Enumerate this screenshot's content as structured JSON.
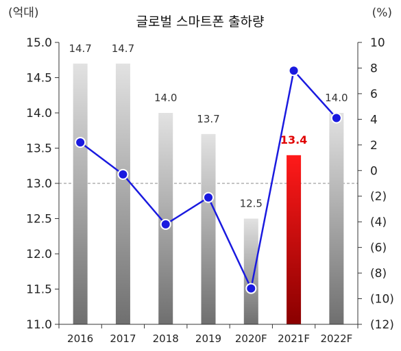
{
  "chart_data": {
    "type": "bar+line",
    "title": "글로벌 스마트폰 출하량",
    "left_unit": "(억대)",
    "right_unit": "(%)",
    "categories": [
      "2016",
      "2017",
      "2018",
      "2019",
      "2020F",
      "2021F",
      "2022F"
    ],
    "bar_series": {
      "values": [
        14.7,
        14.7,
        14.0,
        13.7,
        12.5,
        13.4,
        14.0
      ],
      "labels": [
        "14.7",
        "14.7",
        "14.0",
        "13.7",
        "12.5",
        "13.4",
        "14.0"
      ],
      "highlight_index": 5,
      "colors": {
        "normal_top": "#e2e2e2",
        "normal_bottom": "#6f6f6f",
        "highlight_top": "#ff1a1a",
        "highlight_bottom": "#8a0000"
      }
    },
    "line_series": {
      "values": [
        2.2,
        -0.3,
        -4.2,
        -2.1,
        -9.2,
        7.8,
        4.1
      ],
      "color": "#1a1adf"
    },
    "left_axis": {
      "ylim": [
        11.0,
        15.0
      ],
      "ticks": [
        "15.0",
        "14.5",
        "14.0",
        "13.5",
        "13.0",
        "12.5",
        "12.0",
        "11.5",
        "11.0"
      ],
      "tick_values": [
        15.0,
        14.5,
        14.0,
        13.5,
        13.0,
        12.5,
        12.0,
        11.5,
        11.0
      ]
    },
    "right_axis": {
      "ylim": [
        -12,
        10
      ],
      "ticks": [
        "10",
        "8",
        "6",
        "4",
        "2",
        "0",
        "(2)",
        "(4)",
        "(6)",
        "(8)",
        "(10)",
        "(12)"
      ],
      "tick_values": [
        10,
        8,
        6,
        4,
        2,
        0,
        -2,
        -4,
        -6,
        -8,
        -10,
        -12
      ]
    },
    "reference_line": {
      "axis": "left",
      "value": 13.0,
      "style": "dashed"
    }
  }
}
